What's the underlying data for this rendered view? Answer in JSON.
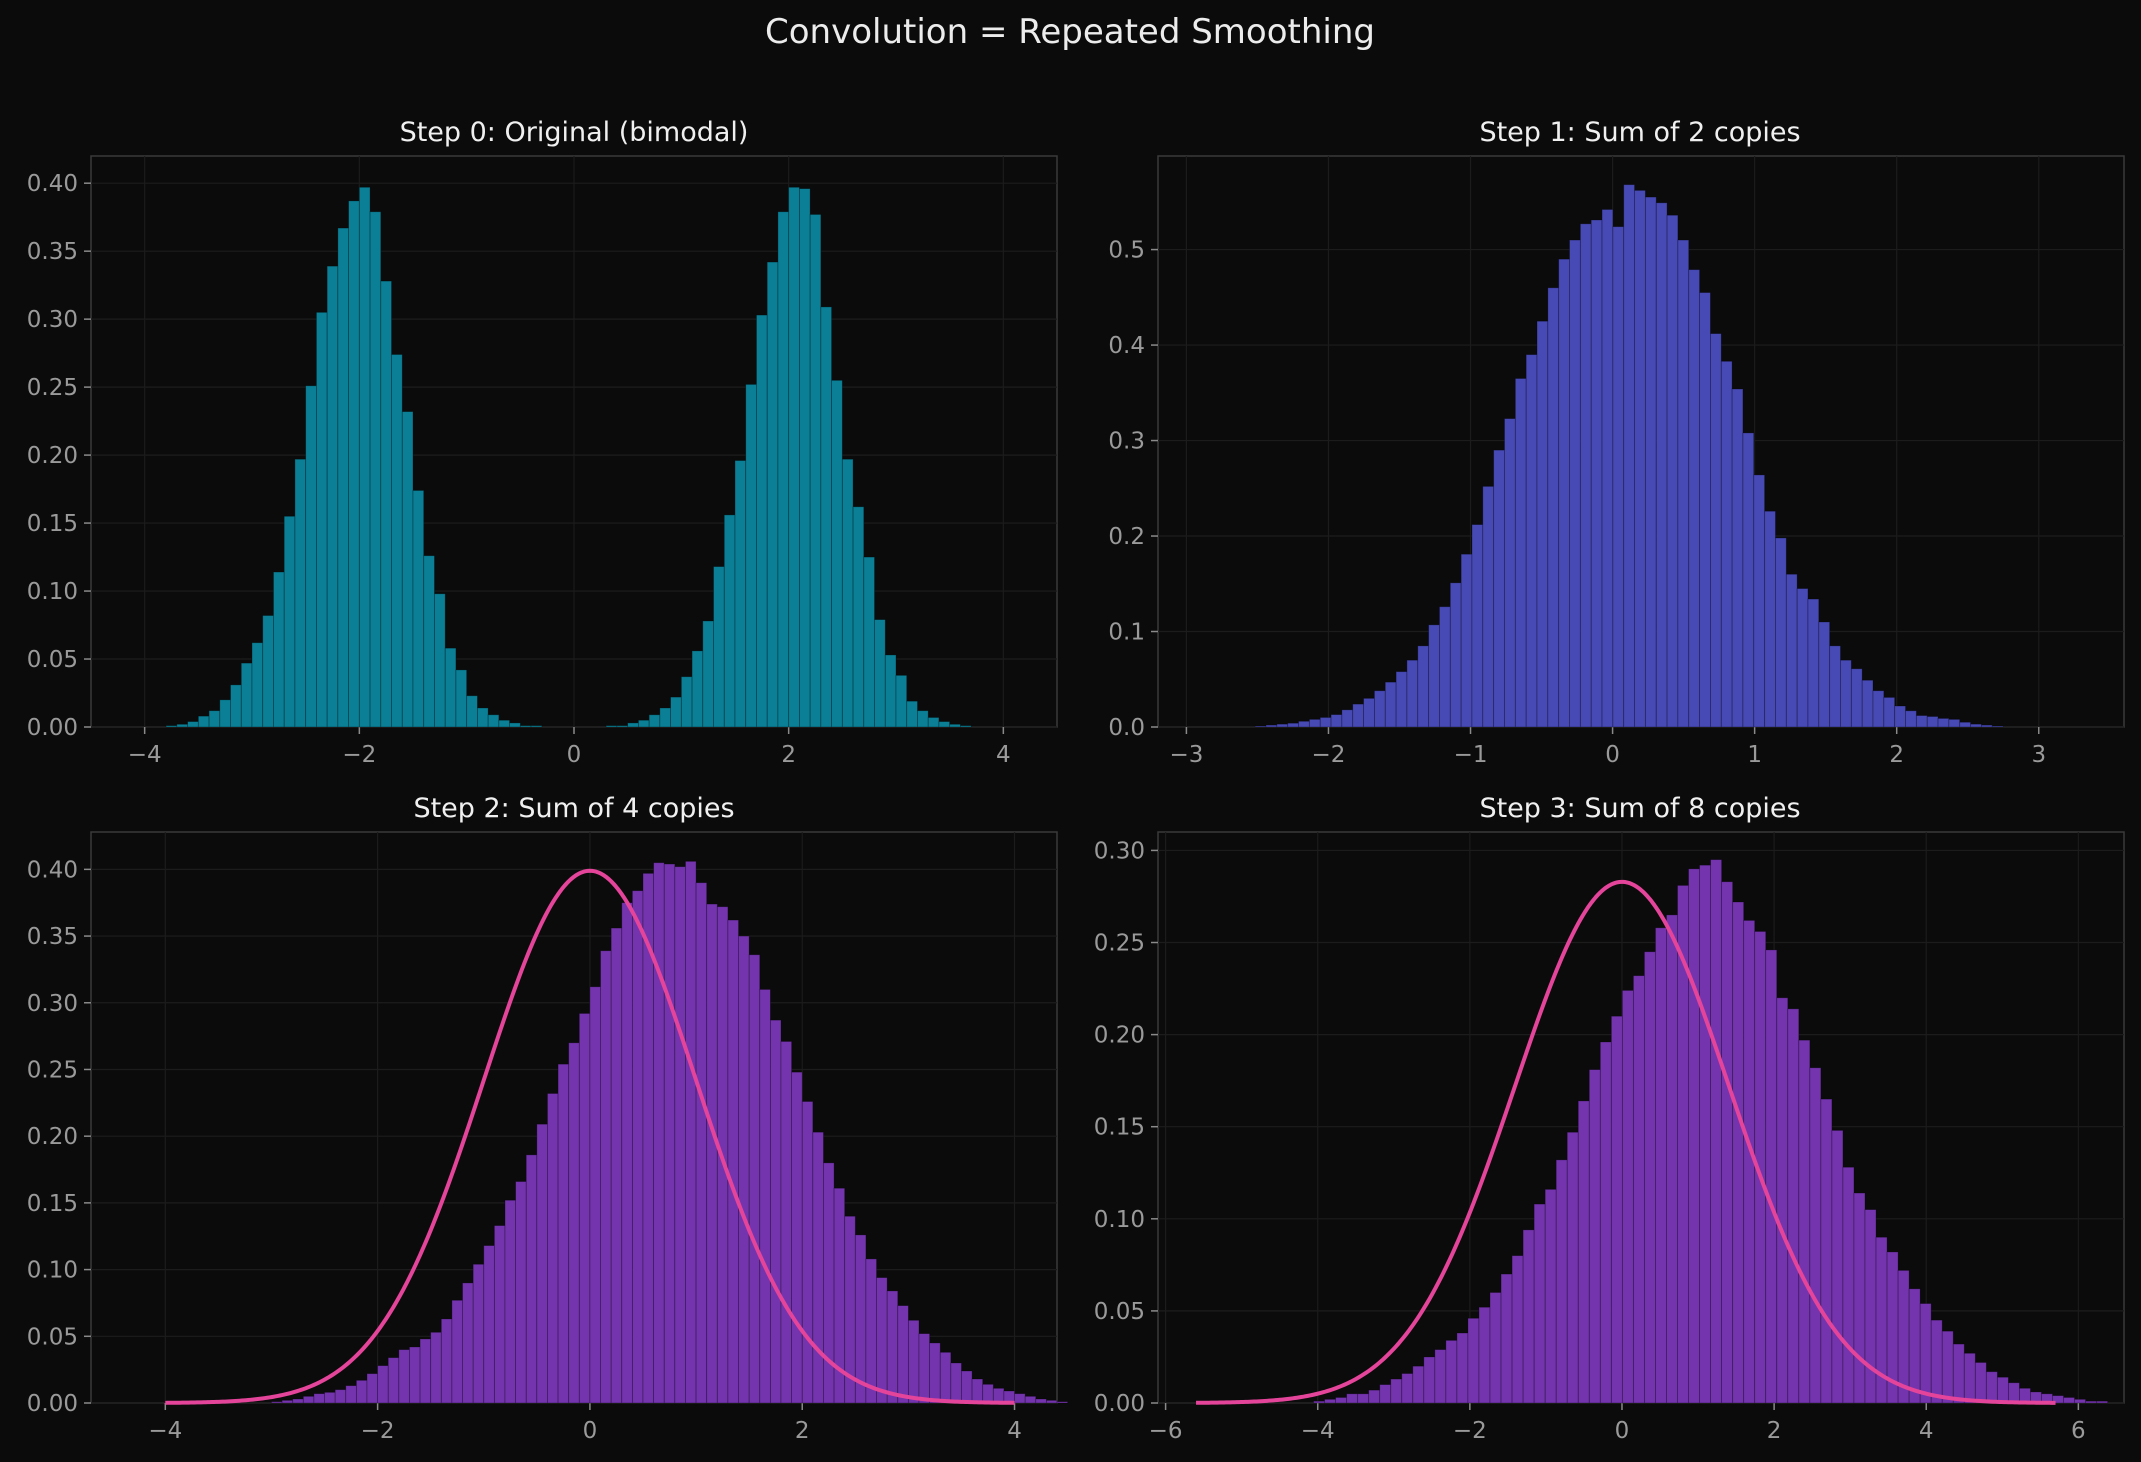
{
  "figure": {
    "title": "Convolution = Repeated Smoothing"
  },
  "chart_data": [
    {
      "type": "bar",
      "title": "Step 0: Original (bimodal)",
      "xlim": [
        -4.5,
        4.5
      ],
      "ylim": [
        0,
        0.42
      ],
      "xticks": [
        -4,
        -2,
        0,
        2,
        4
      ],
      "xtick_labels": [
        "−4",
        "−2",
        "0",
        "2",
        "4"
      ],
      "yticks": [
        0,
        0.05,
        0.1,
        0.15,
        0.2,
        0.25,
        0.3,
        0.35,
        0.4
      ],
      "ytick_labels": [
        "0.00",
        "0.05",
        "0.10",
        "0.15",
        "0.20",
        "0.25",
        "0.30",
        "0.35",
        "0.40"
      ],
      "bar_color": "#0a7f95",
      "bins": {
        "start": -4.0,
        "width": 0.1
      },
      "values": [
        0,
        0,
        0.001,
        0.002,
        0.004,
        0.008,
        0.012,
        0.02,
        0.031,
        0.047,
        0.062,
        0.082,
        0.114,
        0.155,
        0.197,
        0.251,
        0.305,
        0.339,
        0.367,
        0.387,
        0.397,
        0.379,
        0.328,
        0.274,
        0.232,
        0.174,
        0.126,
        0.098,
        0.058,
        0.042,
        0.023,
        0.014,
        0.009,
        0.005,
        0.003,
        0.001,
        0.001,
        0,
        0,
        0,
        0,
        0,
        0,
        0.001,
        0.001,
        0.003,
        0.005,
        0.009,
        0.014,
        0.022,
        0.037,
        0.056,
        0.078,
        0.118,
        0.156,
        0.196,
        0.252,
        0.303,
        0.342,
        0.379,
        0.397,
        0.396,
        0.377,
        0.309,
        0.255,
        0.197,
        0.162,
        0.125,
        0.079,
        0.053,
        0.038,
        0.019,
        0.012,
        0.007,
        0.004,
        0.002,
        0.001,
        0,
        0,
        0,
        0
      ]
    },
    {
      "type": "bar",
      "title": "Step 1: Sum of 2 copies",
      "xlim": [
        -3.2,
        3.6
      ],
      "ylim": [
        0,
        0.598
      ],
      "xticks": [
        -3,
        -2,
        -1,
        0,
        1,
        2,
        3
      ],
      "xtick_labels": [
        "−3",
        "−2",
        "−1",
        "0",
        "1",
        "2",
        "3"
      ],
      "yticks": [
        0,
        0.1,
        0.2,
        0.3,
        0.4,
        0.5
      ],
      "ytick_labels": [
        "0.0",
        "0.1",
        "0.2",
        "0.3",
        "0.4",
        "0.5"
      ],
      "bar_color": "#4749b4",
      "bins": {
        "start": -3.05,
        "width": 0.0763
      },
      "values": [
        0,
        0,
        0,
        0,
        0,
        0,
        0,
        0.001,
        0.002,
        0.003,
        0.004,
        0.006,
        0.008,
        0.01,
        0.013,
        0.018,
        0.024,
        0.03,
        0.038,
        0.047,
        0.058,
        0.07,
        0.085,
        0.107,
        0.126,
        0.151,
        0.181,
        0.212,
        0.252,
        0.29,
        0.323,
        0.365,
        0.39,
        0.425,
        0.46,
        0.49,
        0.51,
        0.527,
        0.531,
        0.542,
        0.524,
        0.568,
        0.562,
        0.555,
        0.549,
        0.536,
        0.51,
        0.479,
        0.455,
        0.412,
        0.383,
        0.354,
        0.308,
        0.264,
        0.226,
        0.198,
        0.16,
        0.145,
        0.134,
        0.11,
        0.085,
        0.07,
        0.061,
        0.049,
        0.038,
        0.031,
        0.022,
        0.017,
        0.012,
        0.011,
        0.009,
        0.008,
        0.005,
        0.003,
        0.002,
        0.001,
        0,
        0,
        0,
        0,
        0,
        0,
        0,
        0,
        0,
        0,
        0,
        0
      ]
    },
    {
      "type": "bar",
      "title": "Step 2: Sum of 4 copies",
      "xlim": [
        -4.7,
        4.4
      ],
      "ylim": [
        0,
        0.428
      ],
      "xticks": [
        -4,
        -2,
        0,
        2,
        4
      ],
      "xtick_labels": [
        "−4",
        "−2",
        "0",
        "2",
        "4"
      ],
      "yticks": [
        0,
        0.05,
        0.1,
        0.15,
        0.2,
        0.25,
        0.3,
        0.35,
        0.4
      ],
      "ytick_labels": [
        "0.00",
        "0.05",
        "0.10",
        "0.15",
        "0.20",
        "0.25",
        "0.30",
        "0.35",
        "0.40"
      ],
      "bar_color": "#7434ae",
      "curve_color": "#e4449a",
      "curve": {
        "mu": 0,
        "sigma": 1,
        "x_range": [
          -4,
          4
        ]
      },
      "bins": {
        "start": -3.1,
        "width": 0.1
      },
      "values": [
        0,
        0.001,
        0.002,
        0.003,
        0.005,
        0.007,
        0.008,
        0.01,
        0.013,
        0.017,
        0.022,
        0.028,
        0.034,
        0.04,
        0.042,
        0.048,
        0.053,
        0.063,
        0.077,
        0.09,
        0.104,
        0.118,
        0.133,
        0.152,
        0.166,
        0.186,
        0.209,
        0.232,
        0.254,
        0.27,
        0.292,
        0.312,
        0.339,
        0.356,
        0.375,
        0.384,
        0.397,
        0.405,
        0.404,
        0.402,
        0.406,
        0.39,
        0.374,
        0.372,
        0.362,
        0.35,
        0.336,
        0.31,
        0.287,
        0.271,
        0.248,
        0.226,
        0.203,
        0.18,
        0.161,
        0.14,
        0.126,
        0.108,
        0.094,
        0.084,
        0.073,
        0.062,
        0.052,
        0.045,
        0.038,
        0.03,
        0.024,
        0.018,
        0.014,
        0.011,
        0.009,
        0.007,
        0.005,
        0.003,
        0.002,
        0.001,
        0,
        0,
        0,
        0,
        0
      ]
    },
    {
      "type": "bar",
      "title": "Step 3: Sum of 8 copies",
      "xlim": [
        -6.1,
        6.6
      ],
      "ylim": [
        0,
        0.31
      ],
      "xticks": [
        -6,
        -4,
        -2,
        0,
        2,
        4,
        6
      ],
      "xtick_labels": [
        "−6",
        "−4",
        "−2",
        "0",
        "2",
        "4",
        "6"
      ],
      "yticks": [
        0,
        0.05,
        0.1,
        0.15,
        0.2,
        0.25,
        0.3
      ],
      "ytick_labels": [
        "0.00",
        "0.05",
        "0.10",
        "0.15",
        "0.20",
        "0.25",
        "0.30"
      ],
      "bar_color": "#7434ae",
      "curve_color": "#e4449a",
      "curve": {
        "mu": 0,
        "sigma": 1.41,
        "x_range": [
          -5.6,
          5.7
        ]
      },
      "bins": {
        "start": -4.2,
        "width": 0.145
      },
      "values": [
        0,
        0.001,
        0.002,
        0.003,
        0.005,
        0.005,
        0.007,
        0.01,
        0.013,
        0.016,
        0.02,
        0.025,
        0.029,
        0.034,
        0.038,
        0.046,
        0.052,
        0.06,
        0.07,
        0.08,
        0.094,
        0.108,
        0.116,
        0.132,
        0.147,
        0.164,
        0.181,
        0.196,
        0.21,
        0.224,
        0.232,
        0.245,
        0.258,
        0.265,
        0.281,
        0.29,
        0.292,
        0.295,
        0.283,
        0.272,
        0.262,
        0.256,
        0.246,
        0.22,
        0.214,
        0.197,
        0.182,
        0.165,
        0.148,
        0.128,
        0.114,
        0.105,
        0.09,
        0.082,
        0.072,
        0.062,
        0.054,
        0.045,
        0.039,
        0.032,
        0.027,
        0.022,
        0.017,
        0.014,
        0.011,
        0.008,
        0.006,
        0.005,
        0.004,
        0.003,
        0.002,
        0.001,
        0.001,
        0,
        0,
        0,
        0
      ]
    }
  ]
}
